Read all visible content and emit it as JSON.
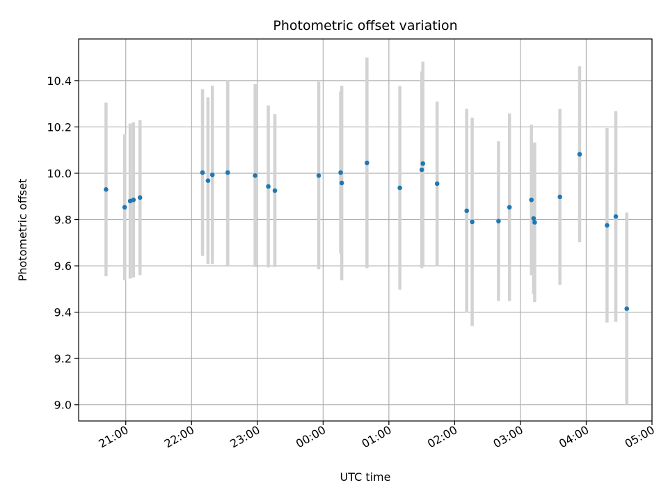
{
  "chart_data": {
    "type": "scatter",
    "title": "Photometric offset variation",
    "xlabel": "UTC time",
    "ylabel": "Photometric offset",
    "xlim": [
      "2024-01-01T20:17",
      "2024-01-02T05:00"
    ],
    "ylim": [
      8.93,
      10.58
    ],
    "grid": true,
    "x_ticks": [
      {
        "t": "2024-01-01T21:00",
        "label": "21:00"
      },
      {
        "t": "2024-01-01T22:00",
        "label": "22:00"
      },
      {
        "t": "2024-01-01T23:00",
        "label": "23:00"
      },
      {
        "t": "2024-01-02T00:00",
        "label": "00:00"
      },
      {
        "t": "2024-01-02T01:00",
        "label": "01:00"
      },
      {
        "t": "2024-01-02T02:00",
        "label": "02:00"
      },
      {
        "t": "2024-01-02T03:00",
        "label": "03:00"
      },
      {
        "t": "2024-01-02T04:00",
        "label": "04:00"
      },
      {
        "t": "2024-01-02T05:00",
        "label": "05:00"
      }
    ],
    "y_ticks": [
      9.0,
      9.2,
      9.4,
      9.6,
      9.8,
      10.0,
      10.2,
      10.4
    ],
    "y_tick_labels": [
      "9.0",
      "9.2",
      "9.4",
      "9.6",
      "9.8",
      "10.0",
      "10.2",
      "10.4"
    ],
    "marker_color": "#1f77b4",
    "errorbar_color": "#d3d3d3",
    "points": [
      {
        "t": "2024-01-01T20:42",
        "y": 9.93,
        "err": 0.375
      },
      {
        "t": "2024-01-01T20:59",
        "y": 9.853,
        "err": 0.315
      },
      {
        "t": "2024-01-01T21:04",
        "y": 9.88,
        "err": 0.335
      },
      {
        "t": "2024-01-01T21:07",
        "y": 9.885,
        "err": 0.335
      },
      {
        "t": "2024-01-01T21:13",
        "y": 9.895,
        "err": 0.335
      },
      {
        "t": "2024-01-01T22:10",
        "y": 10.003,
        "err": 0.36
      },
      {
        "t": "2024-01-01T22:15",
        "y": 9.968,
        "err": 0.36
      },
      {
        "t": "2024-01-01T22:19",
        "y": 9.993,
        "err": 0.385
      },
      {
        "t": "2024-01-01T22:33",
        "y": 10.003,
        "err": 0.4
      },
      {
        "t": "2024-01-01T22:58",
        "y": 9.99,
        "err": 0.395
      },
      {
        "t": "2024-01-01T23:10",
        "y": 9.943,
        "err": 0.35
      },
      {
        "t": "2024-01-01T23:16",
        "y": 9.925,
        "err": 0.33
      },
      {
        "t": "2024-01-01T23:56",
        "y": 9.99,
        "err": 0.405
      },
      {
        "t": "2024-01-02T00:16",
        "y": 10.003,
        "err": 0.35
      },
      {
        "t": "2024-01-02T00:17",
        "y": 9.958,
        "err": 0.42
      },
      {
        "t": "2024-01-02T00:40",
        "y": 10.045,
        "err": 0.455
      },
      {
        "t": "2024-01-02T01:10",
        "y": 9.937,
        "err": 0.44
      },
      {
        "t": "2024-01-02T01:30",
        "y": 10.015,
        "err": 0.425
      },
      {
        "t": "2024-01-02T01:31",
        "y": 10.042,
        "err": 0.44
      },
      {
        "t": "2024-01-02T01:44",
        "y": 9.955,
        "err": 0.355
      },
      {
        "t": "2024-01-02T02:11",
        "y": 9.838,
        "err": 0.44
      },
      {
        "t": "2024-01-02T02:16",
        "y": 9.79,
        "err": 0.45
      },
      {
        "t": "2024-01-02T02:40",
        "y": 9.793,
        "err": 0.345
      },
      {
        "t": "2024-01-02T02:50",
        "y": 9.853,
        "err": 0.405
      },
      {
        "t": "2024-01-02T03:10",
        "y": 9.885,
        "err": 0.325
      },
      {
        "t": "2024-01-02T03:12",
        "y": 9.805,
        "err": 0.325
      },
      {
        "t": "2024-01-02T03:13",
        "y": 9.788,
        "err": 0.345
      },
      {
        "t": "2024-01-02T03:36",
        "y": 9.898,
        "err": 0.38
      },
      {
        "t": "2024-01-02T03:54",
        "y": 10.082,
        "err": 0.38
      },
      {
        "t": "2024-01-02T04:19",
        "y": 9.775,
        "err": 0.42
      },
      {
        "t": "2024-01-02T04:27",
        "y": 9.813,
        "err": 0.455
      },
      {
        "t": "2024-01-02T04:37",
        "y": 9.415,
        "err": 0.415
      }
    ]
  }
}
